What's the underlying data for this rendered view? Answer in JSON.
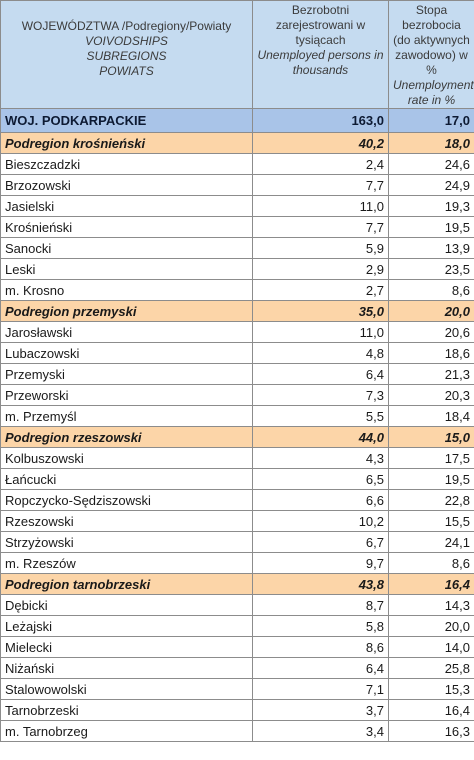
{
  "header": {
    "col1_line1": "WOJEWÓDZTWA /Podregiony/Powiaty",
    "col1_en": [
      "VOIVODSHIPS",
      "SUBREGIONS",
      "POWIATS"
    ],
    "col2_pl": "Bezrobotni zarejestrowani w tysiącach",
    "col2_en": "Unemployed persons in thousands",
    "col3_pl": "Stopa bezrobocia (do aktywnych zawodowo) w %",
    "col3_en": "Unemployment rate in %"
  },
  "rows": [
    {
      "name": "WOJ. PODKARPACKIE",
      "unemployed": "163,0",
      "rate": "17,0",
      "type": "total"
    },
    {
      "name": "Podregion krośnieński",
      "unemployed": "40,2",
      "rate": "18,0",
      "type": "region"
    },
    {
      "name": "Bieszczadzki",
      "unemployed": "2,4",
      "rate": "24,6",
      "type": "row"
    },
    {
      "name": "Brzozowski",
      "unemployed": "7,7",
      "rate": "24,9",
      "type": "row"
    },
    {
      "name": "Jasielski",
      "unemployed": "11,0",
      "rate": "19,3",
      "type": "row"
    },
    {
      "name": "Krośnieński",
      "unemployed": "7,7",
      "rate": "19,5",
      "type": "row"
    },
    {
      "name": "Sanocki",
      "unemployed": "5,9",
      "rate": "13,9",
      "type": "row"
    },
    {
      "name": "Leski",
      "unemployed": "2,9",
      "rate": "23,5",
      "type": "row"
    },
    {
      "name": "m. Krosno",
      "unemployed": "2,7",
      "rate": "8,6",
      "type": "row"
    },
    {
      "name": "Podregion przemyski",
      "unemployed": "35,0",
      "rate": "20,0",
      "type": "region"
    },
    {
      "name": "Jarosławski",
      "unemployed": "11,0",
      "rate": "20,6",
      "type": "row"
    },
    {
      "name": "Lubaczowski",
      "unemployed": "4,8",
      "rate": "18,6",
      "type": "row"
    },
    {
      "name": "Przemyski",
      "unemployed": "6,4",
      "rate": "21,3",
      "type": "row"
    },
    {
      "name": "Przeworski",
      "unemployed": "7,3",
      "rate": "20,3",
      "type": "row"
    },
    {
      "name": "m. Przemyśl",
      "unemployed": "5,5",
      "rate": "18,4",
      "type": "row"
    },
    {
      "name": "Podregion rzeszowski",
      "unemployed": "44,0",
      "rate": "15,0",
      "type": "region"
    },
    {
      "name": "Kolbuszowski",
      "unemployed": "4,3",
      "rate": "17,5",
      "type": "row"
    },
    {
      "name": "Łańcucki",
      "unemployed": "6,5",
      "rate": "19,5",
      "type": "row"
    },
    {
      "name": "Ropczycko-Sędziszowski",
      "unemployed": "6,6",
      "rate": "22,8",
      "type": "row"
    },
    {
      "name": "Rzeszowski",
      "unemployed": "10,2",
      "rate": "15,5",
      "type": "row"
    },
    {
      "name": "Strzyżowski",
      "unemployed": "6,7",
      "rate": "24,1",
      "type": "row"
    },
    {
      "name": "m. Rzeszów",
      "unemployed": "9,7",
      "rate": "8,6",
      "type": "row"
    },
    {
      "name": "Podregion tarnobrzeski",
      "unemployed": "43,8",
      "rate": "16,4",
      "type": "region"
    },
    {
      "name": "Dębicki",
      "unemployed": "8,7",
      "rate": "14,3",
      "type": "row"
    },
    {
      "name": "Leżajski",
      "unemployed": "5,8",
      "rate": "20,0",
      "type": "row"
    },
    {
      "name": "Mielecki",
      "unemployed": "8,6",
      "rate": "14,0",
      "type": "row"
    },
    {
      "name": "Niżański",
      "unemployed": "6,4",
      "rate": "25,8",
      "type": "row"
    },
    {
      "name": "Stalowowolski",
      "unemployed": "7,1",
      "rate": "15,3",
      "type": "row"
    },
    {
      "name": "Tarnobrzeski",
      "unemployed": "3,7",
      "rate": "16,4",
      "type": "row"
    },
    {
      "name": "m. Tarnobrzeg",
      "unemployed": "3,4",
      "rate": "16,3",
      "type": "row"
    }
  ]
}
